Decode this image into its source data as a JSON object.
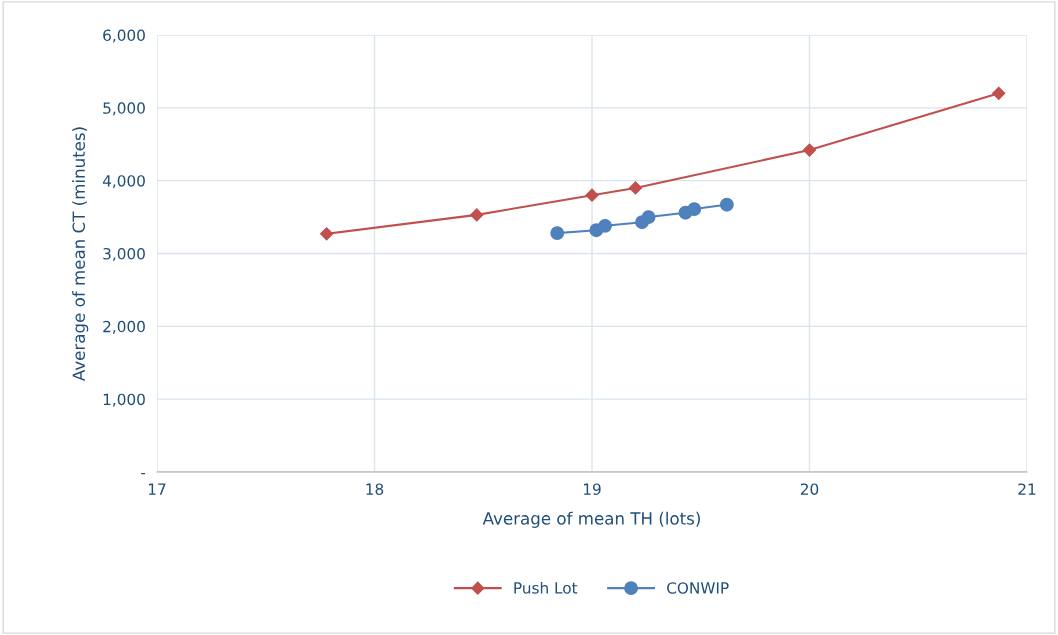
{
  "chart_data": {
    "type": "line",
    "xlabel": "Average of mean TH (lots)",
    "ylabel": "Average of mean CT (minutes)",
    "xlim": [
      17,
      21
    ],
    "xticks": [
      17,
      18,
      19,
      20,
      21
    ],
    "ylim": [
      0,
      6000
    ],
    "yticks": [
      {
        "value": 0,
        "label": "-"
      },
      {
        "value": 1000,
        "label": "1,000"
      },
      {
        "value": 2000,
        "label": "2,000"
      },
      {
        "value": 3000,
        "label": "3,000"
      },
      {
        "value": 4000,
        "label": "4,000"
      },
      {
        "value": 5000,
        "label": "5,000"
      },
      {
        "value": 6000,
        "label": "6,000"
      }
    ],
    "grid": true,
    "legend": "bottom",
    "series": [
      {
        "name": "Push Lot",
        "color": "#c0504d",
        "marker": "diamond",
        "x": [
          17.78,
          18.47,
          19.0,
          19.2,
          20.0,
          20.87
        ],
        "values": [
          3270,
          3530,
          3800,
          3900,
          4420,
          5200
        ]
      },
      {
        "name": "CONWIP",
        "color": "#4f81bd",
        "marker": "circle",
        "x": [
          18.84,
          19.02,
          19.06,
          19.23,
          19.26,
          19.43,
          19.47,
          19.62
        ],
        "values": [
          3280,
          3320,
          3380,
          3430,
          3500,
          3560,
          3610,
          3670
        ]
      }
    ]
  }
}
